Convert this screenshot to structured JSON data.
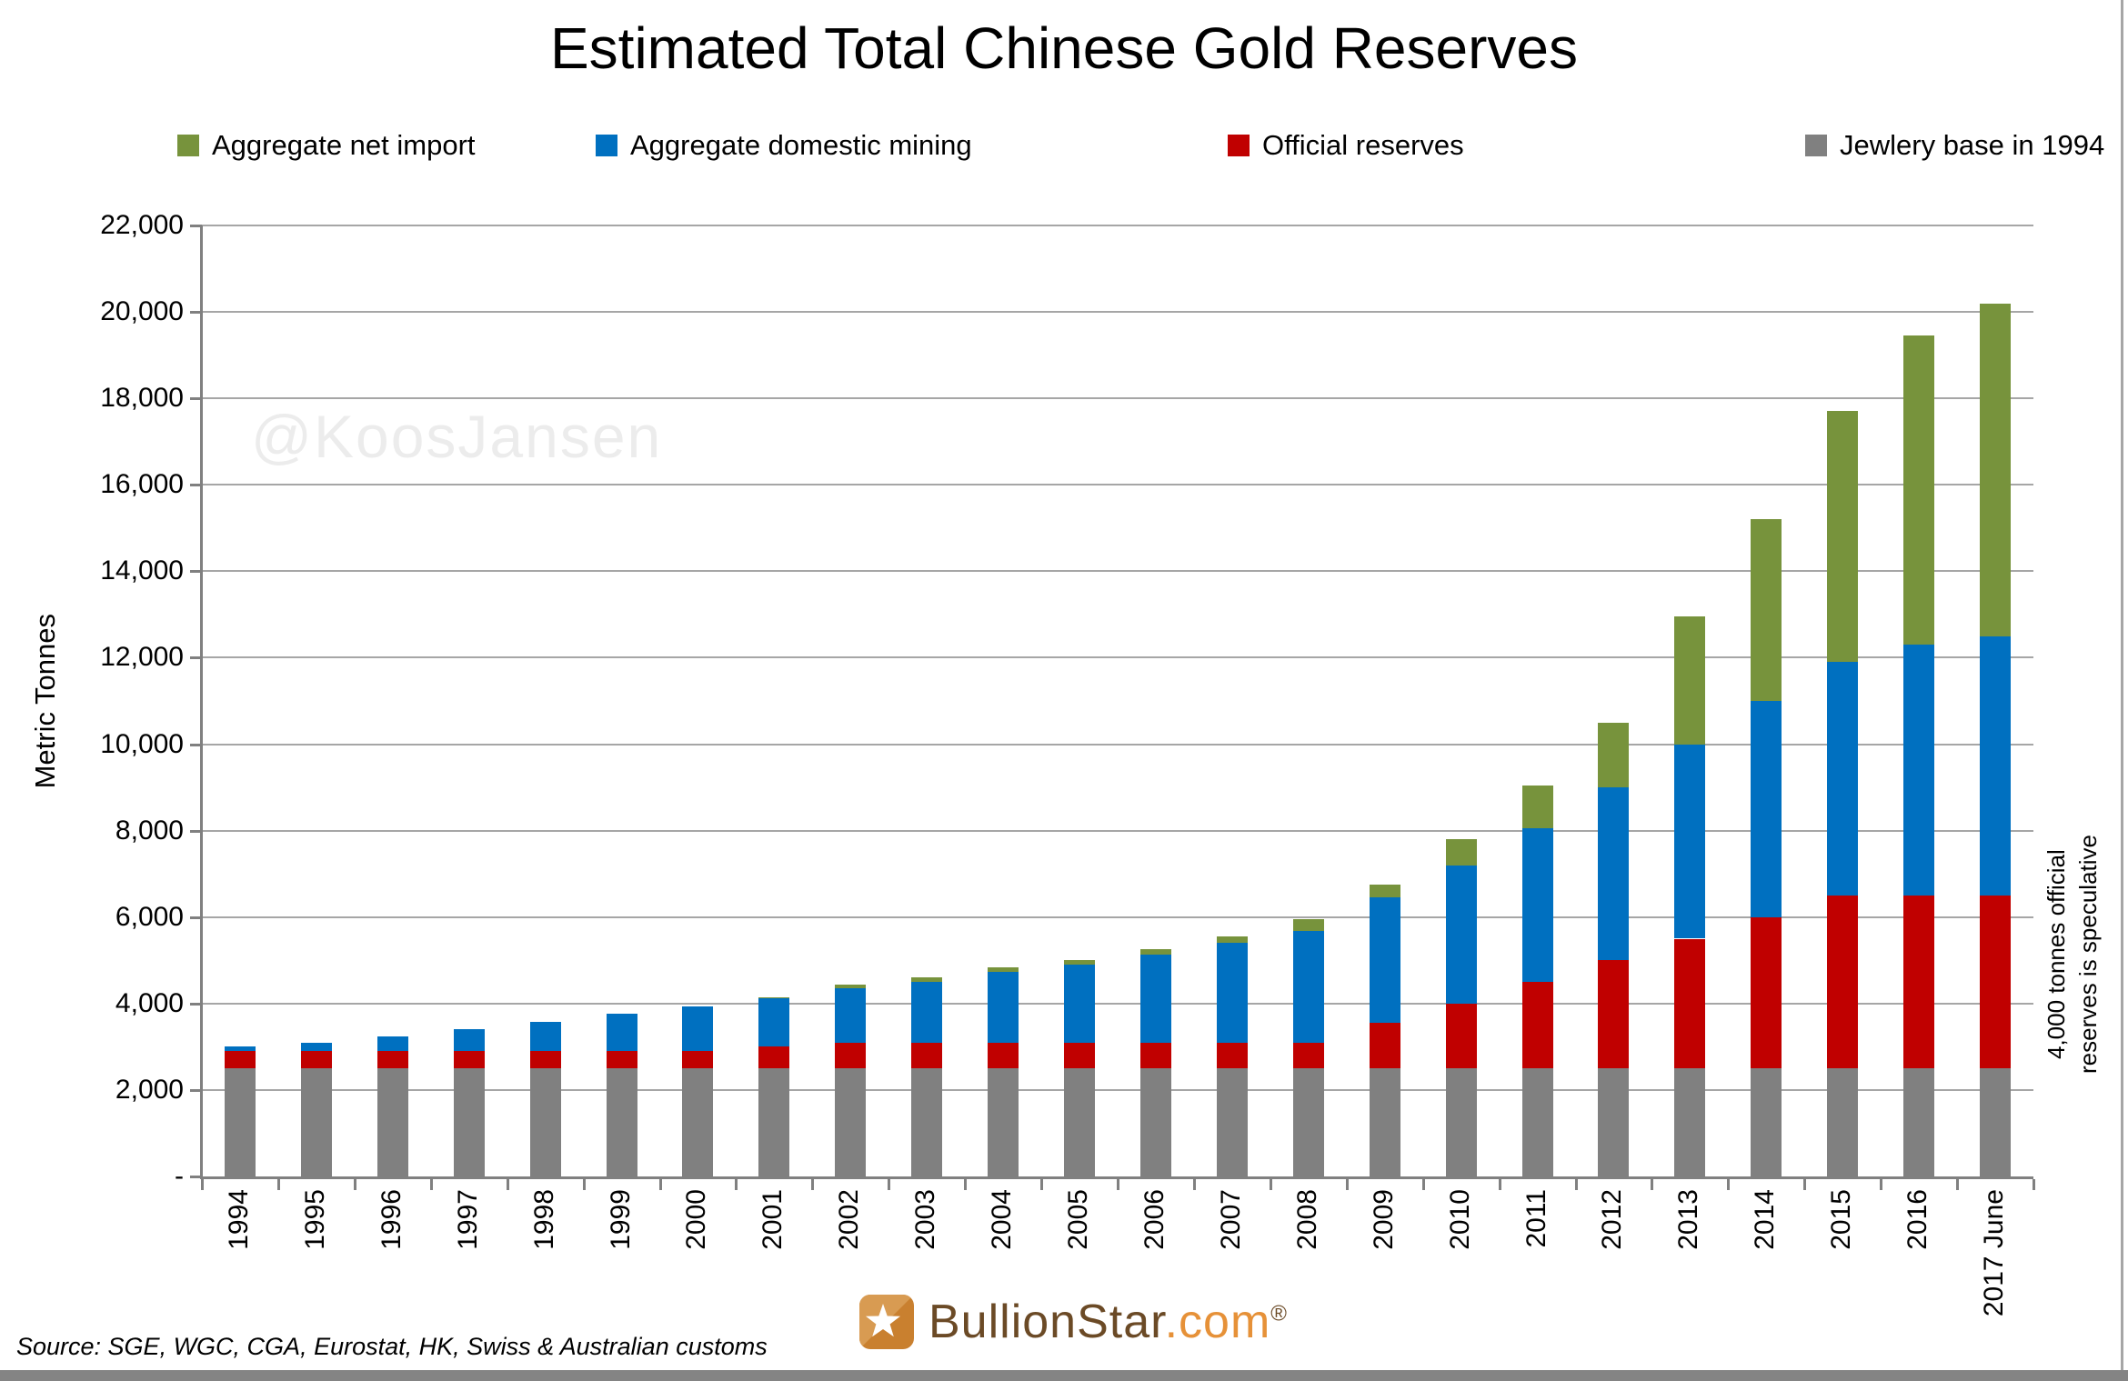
{
  "title": "Estimated Total Chinese Gold Reserves",
  "legend": {
    "items": [
      {
        "label": "Aggregate net import",
        "color": "#77933C"
      },
      {
        "label": "Aggregate domestic mining",
        "color": "#0070C0"
      },
      {
        "label": "Official reserves",
        "color": "#C00000"
      },
      {
        "label": "Jewlery base in 1994",
        "color": "#808080"
      }
    ]
  },
  "y_axis": {
    "title": "Metric Tonnes",
    "ticks": [
      "22,000",
      "20,000",
      "18,000",
      "16,000",
      "14,000",
      "12,000",
      "10,000",
      "8,000",
      "6,000",
      "4,000",
      "2,000",
      "-"
    ]
  },
  "annotations": {
    "watermark": "@KoosJansen",
    "right_note": "4,000 tonnes official\nreserves is speculative"
  },
  "footer": {
    "source": "Source: SGE, WGC, CGA, Eurostat, HK, Swiss & Australian customs",
    "logo": {
      "brand": "BullionStar",
      "domain": ".com",
      "registered": "®"
    }
  },
  "colors": {
    "series_green": "#77933C",
    "series_blue": "#0070C0",
    "series_red": "#C00000",
    "series_gray": "#808080",
    "gridline": "#A6A6A6",
    "axis": "#808080",
    "watermark": "#ECECEC",
    "logo_brown": "#6B4A26",
    "logo_orange": "#E69138"
  },
  "chart_data": {
    "type": "bar",
    "stacked": true,
    "title": "Estimated Total Chinese Gold Reserves",
    "ylabel": "Metric Tonnes",
    "xlabel": "",
    "ylim": [
      0,
      22000
    ],
    "ytick_step": 2000,
    "grid": true,
    "legend_position": "top",
    "categories": [
      "1994",
      "1995",
      "1996",
      "1997",
      "1998",
      "1999",
      "2000",
      "2001",
      "2002",
      "2003",
      "2004",
      "2005",
      "2006",
      "2007",
      "2008",
      "2009",
      "2010",
      "2011",
      "2012",
      "2013",
      "2014",
      "2015",
      "2016",
      "2017 June"
    ],
    "series": [
      {
        "name": "Jewlery base in 1994",
        "key": "jewlery-base",
        "color": "#808080",
        "values": [
          2500,
          2500,
          2500,
          2500,
          2500,
          2500,
          2500,
          2500,
          2500,
          2500,
          2500,
          2500,
          2500,
          2500,
          2500,
          2500,
          2500,
          2500,
          2500,
          2500,
          2500,
          2500,
          2500,
          2500
        ]
      },
      {
        "name": "Official reserves",
        "key": "official-reserves",
        "color": "#C00000",
        "values": [
          400,
          400,
          400,
          400,
          400,
          400,
          400,
          500,
          600,
          600,
          600,
          600,
          600,
          600,
          600,
          1050,
          1500,
          2000,
          2500,
          3000,
          3500,
          4000,
          4000,
          4000
        ]
      },
      {
        "name": "Aggregate domestic mining",
        "key": "domestic-mining",
        "color": "#0070C0",
        "values": [
          100,
          200,
          330,
          500,
          680,
          870,
          1030,
          1120,
          1250,
          1400,
          1630,
          1800,
          2030,
          2300,
          2570,
          2900,
          3200,
          3550,
          4000,
          4500,
          5000,
          5400,
          5800,
          6000
        ]
      },
      {
        "name": "Aggregate net import",
        "key": "net-import",
        "color": "#77933C",
        "values": [
          0,
          0,
          0,
          0,
          0,
          0,
          0,
          30,
          80,
          100,
          100,
          100,
          120,
          160,
          280,
          300,
          600,
          1000,
          1500,
          2950,
          4200,
          5800,
          7150,
          7700
        ]
      }
    ],
    "totals": [
      3000,
      3100,
      3230,
      3400,
      3580,
      3770,
      3930,
      4150,
      4430,
      4600,
      4830,
      5000,
      5250,
      5560,
      5950,
      6750,
      7800,
      9050,
      10500,
      12950,
      15200,
      17700,
      19450,
      20200
    ]
  }
}
